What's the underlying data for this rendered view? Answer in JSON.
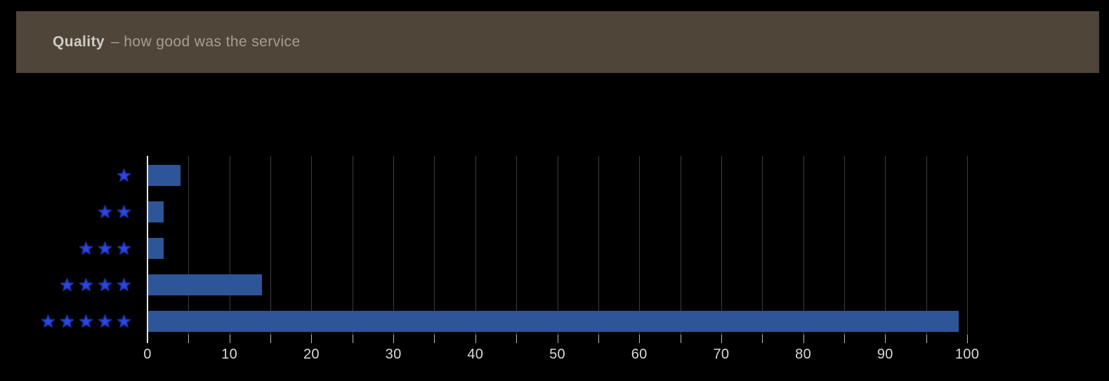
{
  "header": {
    "title_bold": "Quality",
    "title_rest": "– how good was the service"
  },
  "chart_data": {
    "type": "bar",
    "orientation": "horizontal",
    "title": "Quality – how good was the service",
    "categories": [
      "1 star",
      "2 stars",
      "3 stars",
      "4 stars",
      "5 stars"
    ],
    "stars_per_category": [
      1,
      2,
      3,
      4,
      5
    ],
    "values": [
      4,
      2,
      2,
      14,
      99
    ],
    "xlabel": "",
    "ylabel": "",
    "xlim": [
      0,
      100
    ],
    "x_major_ticks": [
      0,
      10,
      20,
      30,
      40,
      50,
      60,
      70,
      80,
      90,
      100
    ],
    "x_minor_step": 5,
    "grid": "vertical, every 5 units",
    "legend": "none",
    "colors": {
      "background": "#000000",
      "header_background": "#4f4539",
      "header_title": "#cfccc6",
      "header_subtitle": "#a69e93",
      "bar_fill": "#2e5597",
      "star_fill": "#2b49e0",
      "star_outline": "#1b2fa8",
      "gridline": "#3d3d3d",
      "axis_line": "#e8e8e8",
      "tick_mark": "#b9b9b9",
      "tick_label": "#d9d9d9"
    }
  }
}
